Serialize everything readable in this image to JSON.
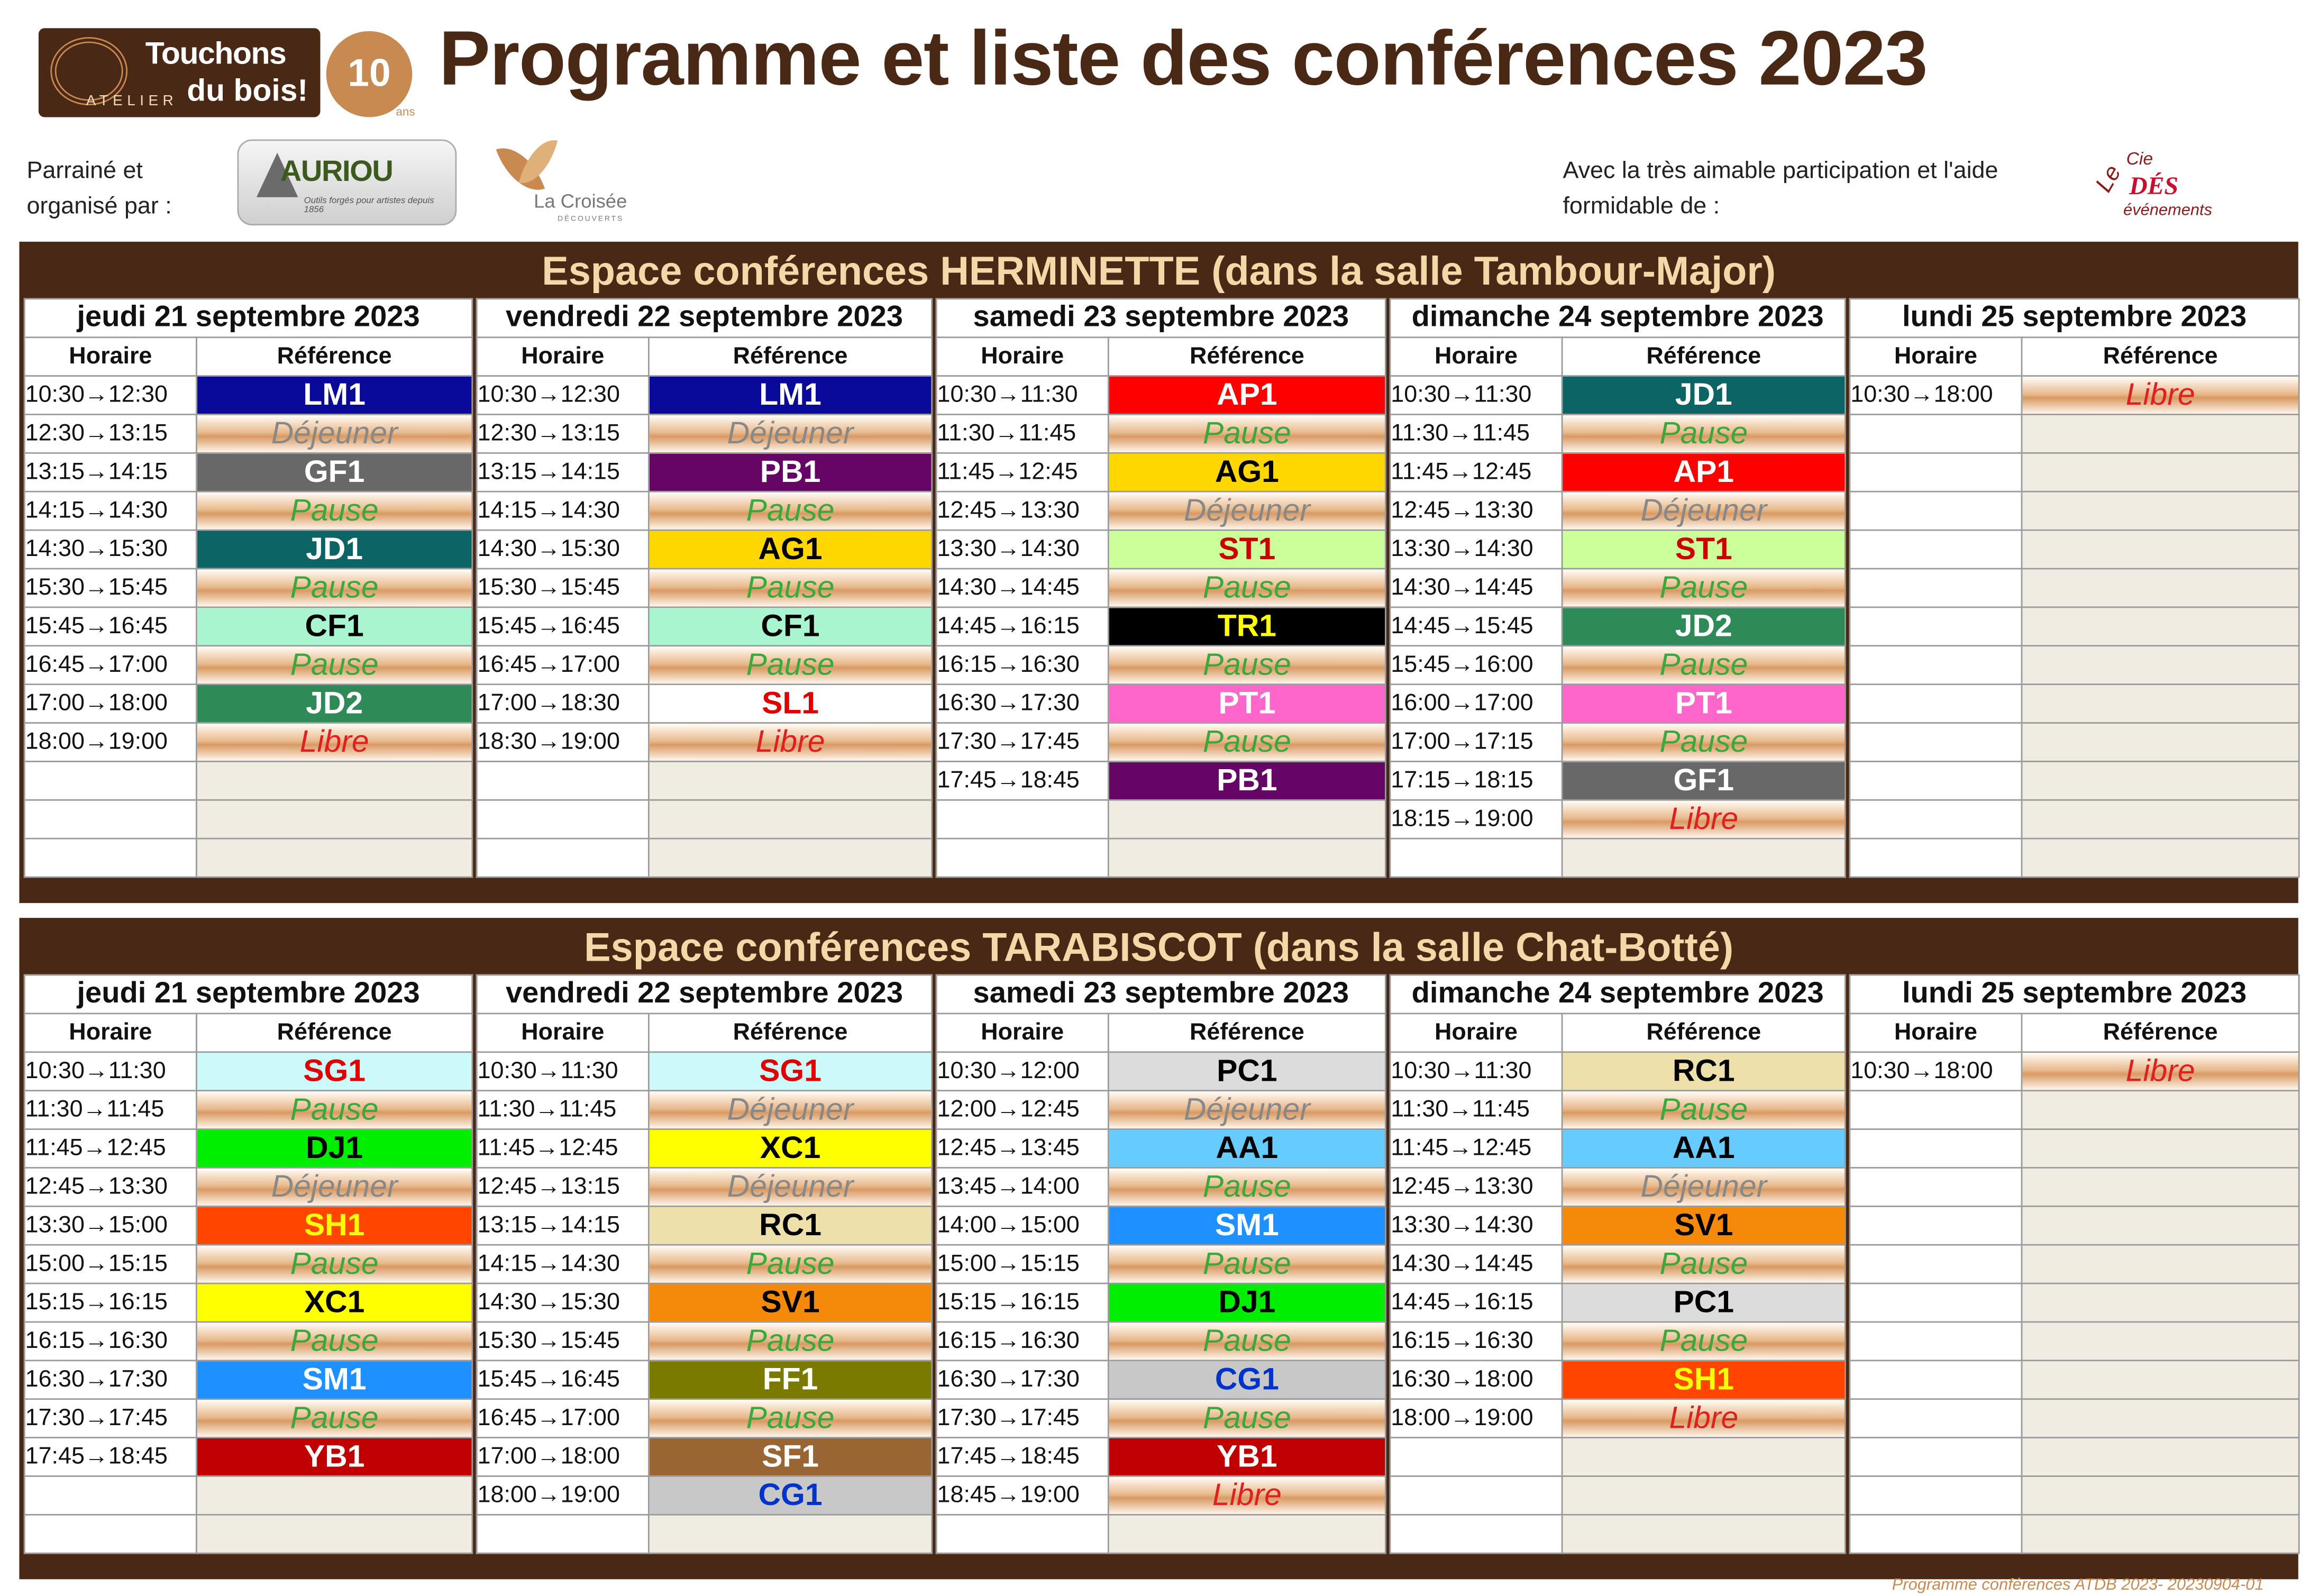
{
  "header": {
    "title": "Programme et liste des conférences 2023",
    "logo": {
      "line1": "Touchons",
      "line2": "du bois!",
      "atelier": "ATELIER",
      "anniversary": "10",
      "anniversary_unit": "ans"
    },
    "sponsor_label": "Parrainé et organisé par :",
    "sponsor1": {
      "name": "AURIOU",
      "tagline": "Outils forgés pour artistes depuis 1856"
    },
    "sponsor2": {
      "name": "La Croisée",
      "tagline": "DÉCOUVERTS"
    },
    "thanks_label": "Avec la très aimable participation et l'aide formidable de :",
    "partner": {
      "le": "Le",
      "cie": "Cie",
      "name": "DÉS",
      "sub": "événements"
    }
  },
  "column_headers": {
    "time": "Horaire",
    "ref": "Référence"
  },
  "colors": {
    "LM1": {
      "bg": "#0a0a9a",
      "fg": "#ffffff"
    },
    "GF1": {
      "bg": "#686868",
      "fg": "#ffffff"
    },
    "JD1": {
      "bg": "#0c6464",
      "fg": "#ffffff"
    },
    "CF1": {
      "bg": "#a8f5d0",
      "fg": "#000000"
    },
    "JD2": {
      "bg": "#2e8b57",
      "fg": "#ffffff"
    },
    "PB1": {
      "bg": "#650565",
      "fg": "#ffffff"
    },
    "AG1": {
      "bg": "#ffd700",
      "fg": "#000000"
    },
    "SL1": {
      "bg": "#ffffff",
      "fg": "#e00000"
    },
    "AP1": {
      "bg": "#ff0000",
      "fg": "#ffffff"
    },
    "ST1": {
      "bg": "#ccff99",
      "fg": "#cc0000"
    },
    "TR1": {
      "bg": "#000000",
      "fg": "#ffff00"
    },
    "PT1": {
      "bg": "#ff66cc",
      "fg": "#ffffff"
    },
    "SG1": {
      "bg": "#ccfafa",
      "fg": "#e00000"
    },
    "DJ1": {
      "bg": "#00ee00",
      "fg": "#000000"
    },
    "SH1": {
      "bg": "#ff4500",
      "fg": "#ffff00"
    },
    "XC1": {
      "bg": "#ffff00",
      "fg": "#000000"
    },
    "SM1": {
      "bg": "#1e90ff",
      "fg": "#ffffff"
    },
    "YB1": {
      "bg": "#c00000",
      "fg": "#ffffff"
    },
    "RC1": {
      "bg": "#ede0aa",
      "fg": "#000000"
    },
    "SV1": {
      "bg": "#f58a0a",
      "fg": "#000000"
    },
    "FF1": {
      "bg": "#7a7a00",
      "fg": "#ffffff"
    },
    "SF1": {
      "bg": "#996633",
      "fg": "#ffffff"
    },
    "CG1": {
      "bg": "#c8c8c8",
      "fg": "#0033cc"
    },
    "PC1": {
      "bg": "#dcdcdc",
      "fg": "#000000"
    },
    "AA1": {
      "bg": "#66ccff",
      "fg": "#000000"
    }
  },
  "sections": [
    {
      "title": "Espace conférences HERMINETTE (dans la salle Tambour-Major)",
      "rows": 13,
      "days": [
        {
          "day": "jeudi 21 septembre 2023",
          "slots": [
            [
              "10:30→12:30",
              "LM1"
            ],
            [
              "12:30→13:15",
              "Déjeuner"
            ],
            [
              "13:15→14:15",
              "GF1"
            ],
            [
              "14:15→14:30",
              "Pause"
            ],
            [
              "14:30→15:30",
              "JD1"
            ],
            [
              "15:30→15:45",
              "Pause"
            ],
            [
              "15:45→16:45",
              "CF1"
            ],
            [
              "16:45→17:00",
              "Pause"
            ],
            [
              "17:00→18:00",
              "JD2"
            ],
            [
              "18:00→19:00",
              "Libre"
            ]
          ]
        },
        {
          "day": "vendredi 22 septembre 2023",
          "slots": [
            [
              "10:30→12:30",
              "LM1"
            ],
            [
              "12:30→13:15",
              "Déjeuner"
            ],
            [
              "13:15→14:15",
              "PB1"
            ],
            [
              "14:15→14:30",
              "Pause"
            ],
            [
              "14:30→15:30",
              "AG1"
            ],
            [
              "15:30→15:45",
              "Pause"
            ],
            [
              "15:45→16:45",
              "CF1"
            ],
            [
              "16:45→17:00",
              "Pause"
            ],
            [
              "17:00→18:30",
              "SL1"
            ],
            [
              "18:30→19:00",
              "Libre"
            ]
          ]
        },
        {
          "day": "samedi 23 septembre 2023",
          "slots": [
            [
              "10:30→11:30",
              "AP1"
            ],
            [
              "11:30→11:45",
              "Pause"
            ],
            [
              "11:45→12:45",
              "AG1"
            ],
            [
              "12:45→13:30",
              "Déjeuner"
            ],
            [
              "13:30→14:30",
              "ST1"
            ],
            [
              "14:30→14:45",
              "Pause"
            ],
            [
              "14:45→16:15",
              "TR1"
            ],
            [
              "16:15→16:30",
              "Pause"
            ],
            [
              "16:30→17:30",
              "PT1"
            ],
            [
              "17:30→17:45",
              "Pause"
            ],
            [
              "17:45→18:45",
              "PB1"
            ]
          ]
        },
        {
          "day": "dimanche 24 septembre 2023",
          "slots": [
            [
              "10:30→11:30",
              "JD1"
            ],
            [
              "11:30→11:45",
              "Pause"
            ],
            [
              "11:45→12:45",
              "AP1"
            ],
            [
              "12:45→13:30",
              "Déjeuner"
            ],
            [
              "13:30→14:30",
              "ST1"
            ],
            [
              "14:30→14:45",
              "Pause"
            ],
            [
              "14:45→15:45",
              "JD2"
            ],
            [
              "15:45→16:00",
              "Pause"
            ],
            [
              "16:00→17:00",
              "PT1"
            ],
            [
              "17:00→17:15",
              "Pause"
            ],
            [
              "17:15→18:15",
              "GF1"
            ],
            [
              "18:15→19:00",
              "Libre"
            ]
          ]
        },
        {
          "day": "lundi 25 septembre 2023",
          "slots": [
            [
              "10:30→18:00",
              "Libre"
            ]
          ]
        }
      ]
    },
    {
      "title": "Espace conférences TARABISCOT (dans la salle Chat-Botté)",
      "rows": 13,
      "days": [
        {
          "day": "jeudi 21 septembre 2023",
          "slots": [
            [
              "10:30→11:30",
              "SG1"
            ],
            [
              "11:30→11:45",
              "Pause"
            ],
            [
              "11:45→12:45",
              "DJ1"
            ],
            [
              "12:45→13:30",
              "Déjeuner"
            ],
            [
              "13:30→15:00",
              "SH1"
            ],
            [
              "15:00→15:15",
              "Pause"
            ],
            [
              "15:15→16:15",
              "XC1"
            ],
            [
              "16:15→16:30",
              "Pause"
            ],
            [
              "16:30→17:30",
              "SM1"
            ],
            [
              "17:30→17:45",
              "Pause"
            ],
            [
              "17:45→18:45",
              "YB1"
            ]
          ]
        },
        {
          "day": "vendredi 22 septembre 2023",
          "slots": [
            [
              "10:30→11:30",
              "SG1"
            ],
            [
              "11:30→11:45",
              "Déjeuner"
            ],
            [
              "11:45→12:45",
              "XC1"
            ],
            [
              "12:45→13:15",
              "Déjeuner"
            ],
            [
              "13:15→14:15",
              "RC1"
            ],
            [
              "14:15→14:30",
              "Pause"
            ],
            [
              "14:30→15:30",
              "SV1"
            ],
            [
              "15:30→15:45",
              "Pause"
            ],
            [
              "15:45→16:45",
              "FF1"
            ],
            [
              "16:45→17:00",
              "Pause"
            ],
            [
              "17:00→18:00",
              "SF1"
            ],
            [
              "18:00→19:00",
              "CG1"
            ]
          ]
        },
        {
          "day": "samedi 23 septembre 2023",
          "slots": [
            [
              "10:30→12:00",
              "PC1"
            ],
            [
              "12:00→12:45",
              "Déjeuner"
            ],
            [
              "12:45→13:45",
              "AA1"
            ],
            [
              "13:45→14:00",
              "Pause"
            ],
            [
              "14:00→15:00",
              "SM1"
            ],
            [
              "15:00→15:15",
              "Pause"
            ],
            [
              "15:15→16:15",
              "DJ1"
            ],
            [
              "16:15→16:30",
              "Pause"
            ],
            [
              "16:30→17:30",
              "CG1"
            ],
            [
              "17:30→17:45",
              "Pause"
            ],
            [
              "17:45→18:45",
              "YB1"
            ],
            [
              "18:45→19:00",
              "Libre"
            ]
          ]
        },
        {
          "day": "dimanche 24 septembre 2023",
          "slots": [
            [
              "10:30→11:30",
              "RC1"
            ],
            [
              "11:30→11:45",
              "Pause"
            ],
            [
              "11:45→12:45",
              "AA1"
            ],
            [
              "12:45→13:30",
              "Déjeuner"
            ],
            [
              "13:30→14:30",
              "SV1"
            ],
            [
              "14:30→14:45",
              "Pause"
            ],
            [
              "14:45→16:15",
              "PC1"
            ],
            [
              "16:15→16:30",
              "Pause"
            ],
            [
              "16:30→18:00",
              "SH1"
            ],
            [
              "18:00→19:00",
              "Libre"
            ]
          ]
        },
        {
          "day": "lundi 25 septembre 2023",
          "slots": [
            [
              "10:30→18:00",
              "Libre"
            ]
          ]
        }
      ]
    }
  ],
  "footer": "Programme conférences ATDB 2023- 20230904-01"
}
